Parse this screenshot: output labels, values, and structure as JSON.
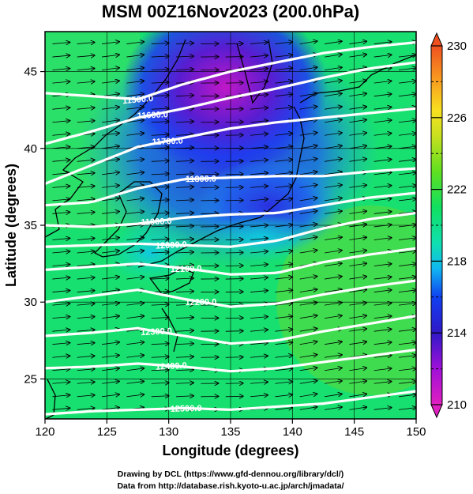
{
  "chart_data": {
    "type": "heatmap",
    "title": "MSM 00Z16Nov2023 (200.0hPa)",
    "xlabel": "Longitude (degrees)",
    "ylabel": "Latitude  (degrees)",
    "xlim": [
      120,
      150
    ],
    "ylim": [
      22.4,
      47.6
    ],
    "xticks": [
      120,
      125,
      130,
      135,
      140,
      145,
      150
    ],
    "yticks": [
      25,
      30,
      35,
      40,
      45
    ],
    "grid": true,
    "colorbar": {
      "range": [
        210,
        230
      ],
      "tick_values": [
        210,
        214,
        218,
        222,
        226,
        230
      ],
      "tick_labels": [
        "210",
        "214",
        "218",
        "222",
        "226",
        "230"
      ],
      "colors": [
        "#e020c0",
        "#a010d8",
        "#3018c8",
        "#1040f0",
        "#10b8f0",
        "#10e0b0",
        "#10e060",
        "#60e020",
        "#c8e020",
        "#f8e020",
        "#f8a020",
        "#f05020"
      ]
    },
    "contours": [
      {
        "label": "11500.0",
        "lat": [
          43.6,
          43.4,
          43.2,
          44.2,
          45.0,
          45.6,
          46.2,
          46.6,
          46.9
        ]
      },
      {
        "label": "11600.0",
        "lat": [
          40.3,
          41.1,
          42.0,
          42.6,
          43.3,
          43.9,
          44.6,
          45.2,
          45.6
        ]
      },
      {
        "label": "11700.0",
        "lat": [
          37.7,
          38.9,
          40.1,
          40.7,
          41.3,
          41.7,
          42.0,
          42.3,
          42.6
        ]
      },
      {
        "label": "11800.0",
        "lat": [
          36.3,
          36.5,
          37.4,
          38.0,
          38.1,
          38.2,
          38.2,
          38.5,
          38.7
        ]
      },
      {
        "label": "11900.0",
        "lat": [
          35.0,
          34.9,
          35.1,
          35.5,
          35.7,
          35.8,
          36.3,
          36.8,
          37.1
        ]
      },
      {
        "label": "12000.0",
        "lat": [
          33.6,
          33.7,
          33.8,
          33.7,
          33.6,
          34.0,
          34.8,
          35.4,
          35.8
        ]
      },
      {
        "label": "12100.0",
        "lat": [
          32.1,
          32.3,
          32.5,
          32.2,
          31.8,
          31.9,
          32.6,
          33.1,
          33.5
        ]
      },
      {
        "label": "12200.0",
        "lat": [
          30.0,
          30.4,
          30.8,
          30.2,
          29.7,
          29.9,
          30.5,
          31.0,
          31.4
        ]
      },
      {
        "label": "12300.0",
        "lat": [
          27.8,
          28.0,
          28.3,
          27.8,
          27.3,
          27.5,
          28.1,
          28.6,
          29.1
        ]
      },
      {
        "label": "12400.0",
        "lat": [
          25.7,
          25.8,
          26.0,
          25.8,
          25.5,
          25.7,
          26.1,
          26.5,
          26.9
        ]
      },
      {
        "label": "12500.0",
        "lat": [
          22.7,
          22.9,
          23.0,
          23.1,
          23.0,
          23.2,
          23.4,
          23.8,
          24.2
        ]
      }
    ],
    "contour_lons": [
      120,
      123.75,
      127.5,
      131.25,
      135,
      138.75,
      142.5,
      146.25,
      150
    ],
    "credits": [
      "Drawing by DCL (https://www.gfd-dennou.org/library/dcl/)",
      "Data from http://database.rish.kyoto-u.ac.jp/arch/jmadata/"
    ]
  }
}
